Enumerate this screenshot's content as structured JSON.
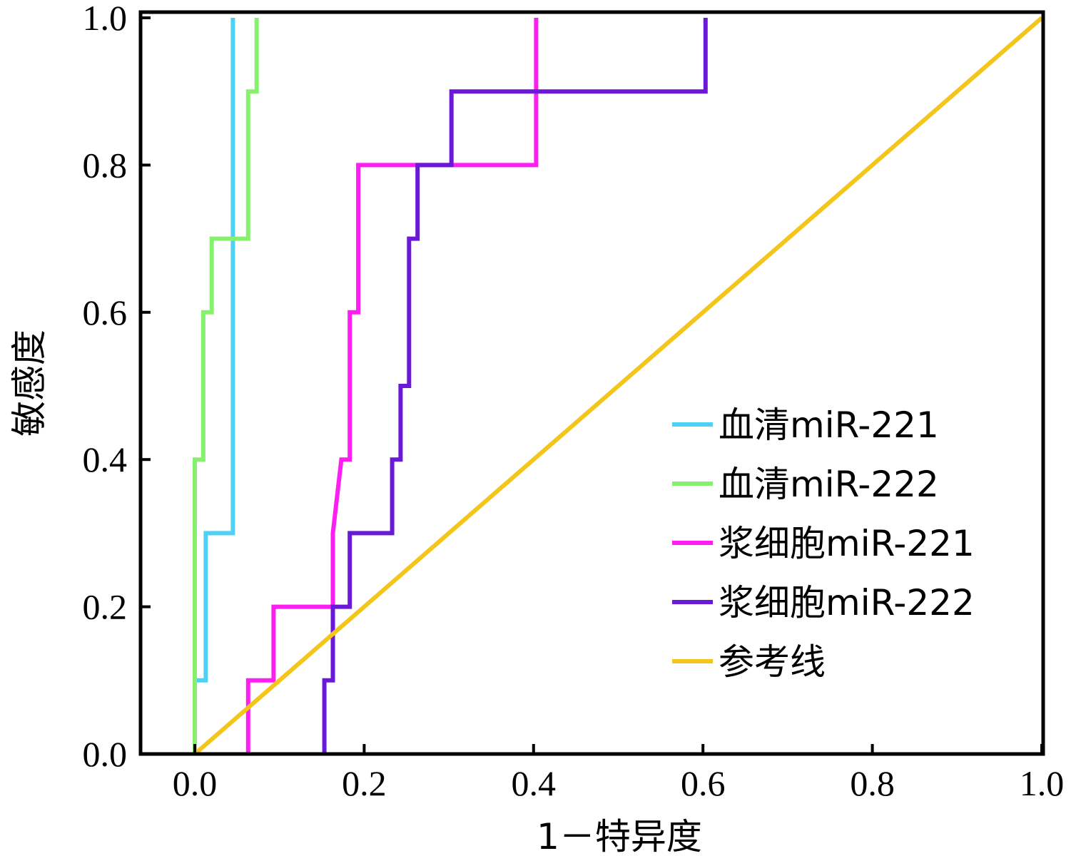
{
  "chart_data": {
    "type": "line",
    "xlabel": "1－特异度",
    "ylabel": "敏感度",
    "xlim": [
      0.0,
      1.0
    ],
    "ylim": [
      0.0,
      1.0
    ],
    "xticks": [
      "0.0",
      "0.2",
      "0.4",
      "0.6",
      "0.8",
      "1.0"
    ],
    "yticks": [
      "0.0",
      "0.2",
      "0.4",
      "0.6",
      "0.8",
      "1.0"
    ],
    "grid": false,
    "legend_position": "bottom-right",
    "series": [
      {
        "name": "血清miR-221",
        "color": "#4fd0f5",
        "x": [
          0.0,
          0.0,
          0.013,
          0.013,
          0.045,
          0.045,
          0.045
        ],
        "y": [
          0.0,
          0.1,
          0.1,
          0.3,
          0.3,
          0.7,
          1.0
        ]
      },
      {
        "name": "血清miR-222",
        "color": "#88f06f",
        "x": [
          0.0,
          0.0,
          0.01,
          0.01,
          0.02,
          0.02,
          0.063,
          0.063,
          0.073,
          0.073
        ],
        "y": [
          0.0,
          0.4,
          0.4,
          0.6,
          0.6,
          0.7,
          0.7,
          0.9,
          0.9,
          1.0
        ]
      },
      {
        "name": "浆细胞miR-221",
        "color": "#ff1ef2",
        "x": [
          0.063,
          0.063,
          0.093,
          0.093,
          0.163,
          0.163,
          0.173,
          0.183,
          0.183,
          0.193,
          0.193,
          0.403,
          0.403
        ],
        "y": [
          0.0,
          0.1,
          0.1,
          0.2,
          0.2,
          0.3,
          0.4,
          0.4,
          0.6,
          0.6,
          0.8,
          0.8,
          1.0
        ]
      },
      {
        "name": "浆细胞miR-222",
        "color": "#6a1ad6",
        "x": [
          0.153,
          0.153,
          0.163,
          0.163,
          0.183,
          0.183,
          0.233,
          0.233,
          0.243,
          0.243,
          0.253,
          0.253,
          0.263,
          0.263,
          0.303,
          0.303,
          0.603,
          0.603
        ],
        "y": [
          0.0,
          0.1,
          0.1,
          0.2,
          0.2,
          0.3,
          0.3,
          0.4,
          0.4,
          0.5,
          0.5,
          0.7,
          0.7,
          0.8,
          0.8,
          0.9,
          0.9,
          1.0
        ]
      },
      {
        "name": "参考线",
        "color": "#f4c51a",
        "x": [
          0.0,
          1.0
        ],
        "y": [
          0.0,
          1.0
        ]
      }
    ]
  }
}
